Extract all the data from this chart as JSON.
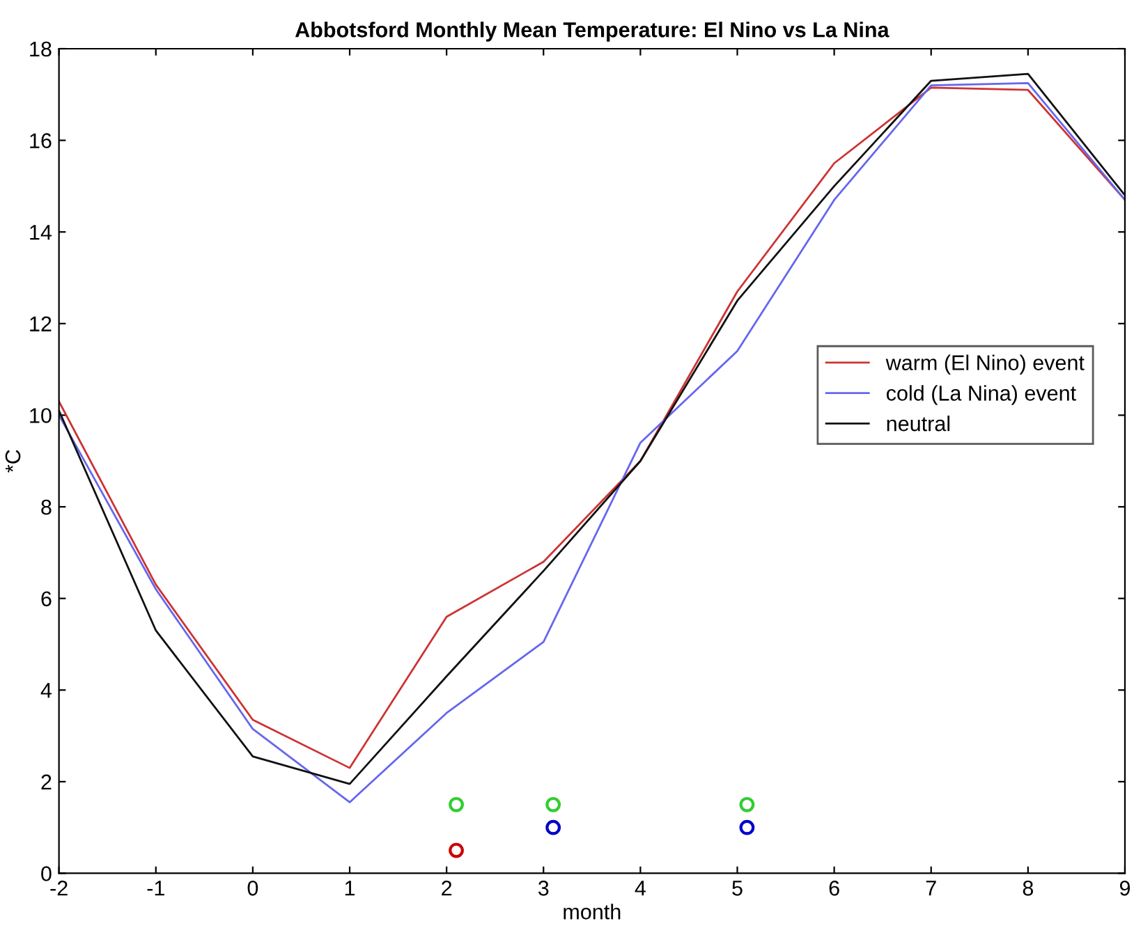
{
  "chart_data": {
    "type": "line",
    "title": "Abbotsford Monthly Mean Temperature: El Nino vs La Nina",
    "xlabel": "month",
    "ylabel": "*C",
    "x": [
      -2,
      -1,
      0,
      1,
      2,
      3,
      4,
      5,
      6,
      7,
      8,
      9
    ],
    "series": [
      {
        "name": "warm (El Nino) event",
        "color": "#cc3333",
        "values": [
          10.3,
          6.3,
          3.35,
          2.3,
          5.6,
          6.8,
          9.0,
          12.7,
          15.5,
          17.15,
          17.1,
          14.7
        ]
      },
      {
        "name": "cold (La Nina) event",
        "color": "#6666ee",
        "values": [
          10.0,
          6.2,
          3.15,
          1.55,
          3.5,
          5.05,
          9.4,
          11.4,
          14.7,
          17.2,
          17.25,
          14.7
        ]
      },
      {
        "name": "neutral",
        "color": "#111111",
        "values": [
          10.1,
          5.3,
          2.55,
          1.95,
          4.3,
          6.6,
          9.0,
          12.5,
          15.0,
          17.3,
          17.45,
          14.8
        ]
      },
      {
        "type": "scatter",
        "color": "#33cc33",
        "marker": "circle",
        "x": [
          2.1,
          3.1,
          5.1
        ],
        "values": [
          1.5,
          1.5,
          1.5
        ]
      },
      {
        "type": "scatter",
        "color": "#0000cc",
        "marker": "circle",
        "x": [
          3.1,
          5.1
        ],
        "values": [
          1.0,
          1.0
        ]
      },
      {
        "type": "scatter",
        "color": "#cc0000",
        "marker": "circle",
        "x": [
          2.1
        ],
        "values": [
          0.5
        ]
      }
    ],
    "xlim": [
      -2,
      9
    ],
    "xticks": [
      -2,
      -1,
      0,
      1,
      2,
      3,
      4,
      5,
      6,
      7,
      8,
      9
    ],
    "ylim": [
      0,
      18
    ],
    "yticks": [
      0,
      2,
      4,
      6,
      8,
      10,
      12,
      14,
      16,
      18
    ],
    "grid": false,
    "legend": "right"
  }
}
